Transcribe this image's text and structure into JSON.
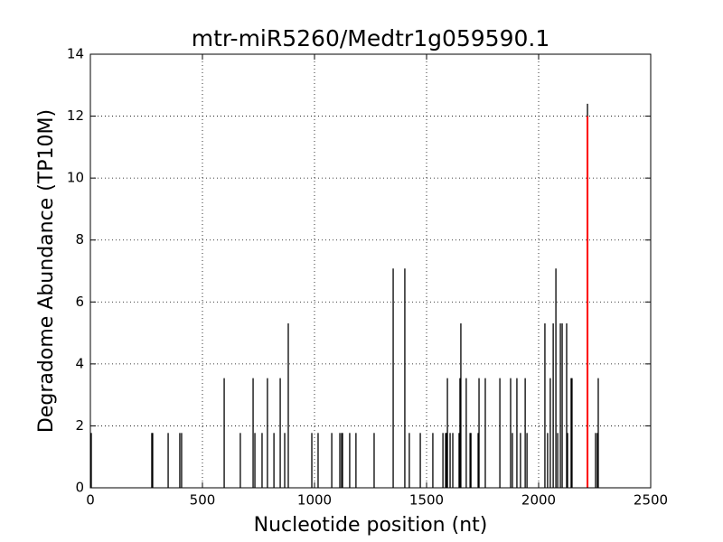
{
  "chart_data": {
    "type": "stem",
    "title": "mtr-miR5260/Medtr1g059590.1",
    "xlabel": "Nucleotide position (nt)",
    "ylabel": "Degradome Abundance (TP10M)",
    "xlim": [
      0,
      2500
    ],
    "ylim": [
      0,
      14
    ],
    "xticks": [
      0,
      500,
      1000,
      1500,
      2000,
      2500
    ],
    "yticks": [
      0,
      2,
      4,
      6,
      8,
      10,
      12,
      14
    ],
    "grid": true,
    "series": [
      {
        "color": "#000000",
        "x": [
          4,
          274,
          278,
          347,
          399,
          407,
          597,
          669,
          726,
          734,
          766,
          790,
          819,
          847,
          867,
          883,
          988,
          1016,
          1077,
          1113,
          1121,
          1125,
          1157,
          1185,
          1266,
          1351,
          1403,
          1423,
          1472,
          1528,
          1573,
          1585,
          1589,
          1593,
          1605,
          1617,
          1645,
          1649,
          1653,
          1677,
          1694,
          1698,
          1730,
          1734,
          1762,
          1827,
          1875,
          1883,
          1903,
          1919,
          1940,
          1948,
          2028,
          2040,
          2052,
          2065,
          2077,
          2085,
          2097,
          2105,
          2125,
          2129,
          2145,
          2149,
          2218,
          2254,
          2262,
          2266
        ],
        "values": [
          1.77,
          1.77,
          1.77,
          1.77,
          1.77,
          1.77,
          3.54,
          1.77,
          3.54,
          1.77,
          1.77,
          3.54,
          1.77,
          3.54,
          1.77,
          5.31,
          1.77,
          1.77,
          1.77,
          1.77,
          1.77,
          1.77,
          1.77,
          1.77,
          1.77,
          7.08,
          7.08,
          1.77,
          1.77,
          1.77,
          1.77,
          1.77,
          1.77,
          3.54,
          1.77,
          1.77,
          1.77,
          3.54,
          5.31,
          3.54,
          1.77,
          1.77,
          1.77,
          3.54,
          3.54,
          3.54,
          3.54,
          1.77,
          3.54,
          1.77,
          3.54,
          1.77,
          5.31,
          1.77,
          3.54,
          5.31,
          7.08,
          1.77,
          5.31,
          5.31,
          5.31,
          1.77,
          3.54,
          3.54,
          12.4,
          1.77,
          1.77,
          3.54
        ]
      },
      {
        "color": "#ff0000",
        "x": [
          2218
        ],
        "values": [
          12
        ]
      }
    ]
  }
}
